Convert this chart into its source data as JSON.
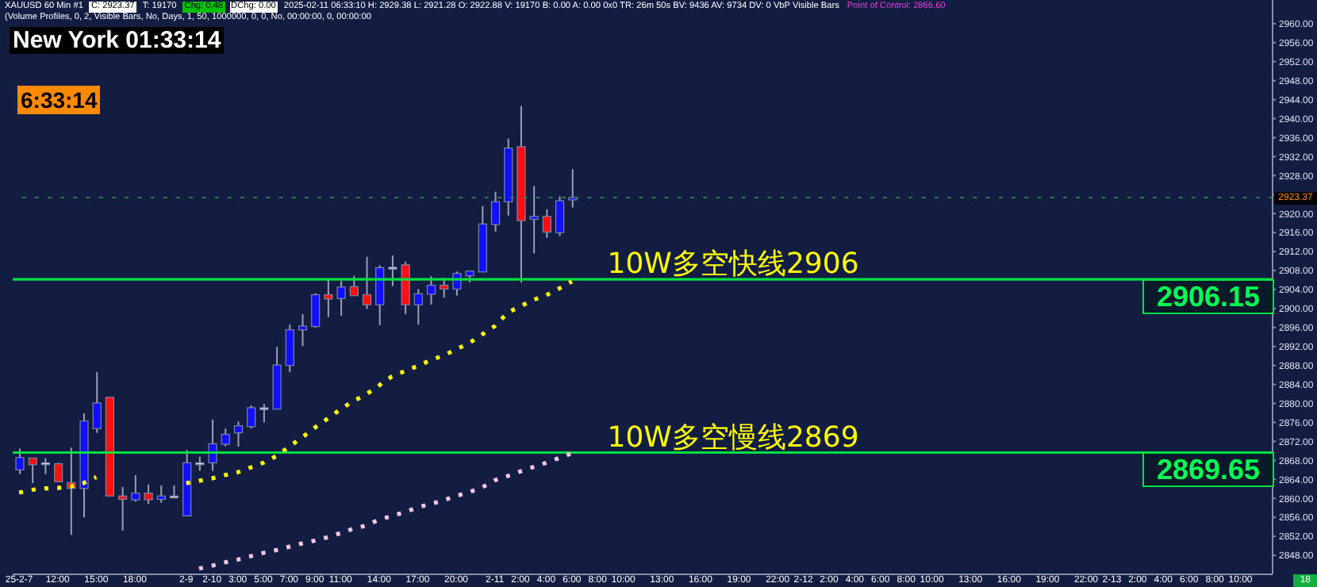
{
  "chart_data": {
    "type": "candlestick",
    "title": "New York 01:33:14",
    "categories": [
      "25-2-7",
      null,
      null,
      "12:00",
      null,
      null,
      "15:00",
      null,
      null,
      "18:00",
      null,
      null,
      null,
      "2-9",
      null,
      "2-10",
      null,
      "3:00",
      null,
      "5:00",
      null,
      "7:00",
      null,
      "9:00",
      null,
      "11:00",
      null,
      null,
      "14:00",
      null,
      null,
      "17:00",
      null,
      null,
      "20:00",
      null,
      null,
      "2-11",
      null,
      "2:00",
      null,
      "4:00",
      null,
      "6:00",
      null,
      "8:00",
      null,
      "10:00",
      null,
      null,
      "13:00",
      null,
      null,
      "16:00",
      null,
      null,
      "19:00",
      null,
      null,
      "22:00",
      null,
      "2-12",
      null,
      "2:00",
      null,
      "4:00",
      null,
      "6:00",
      null,
      "8:00",
      null,
      "10:00",
      null,
      null,
      "13:00",
      null,
      null,
      "16:00",
      null,
      null,
      "19:00",
      null,
      null,
      "22:00",
      null,
      "2-13",
      null,
      "2:00",
      null,
      "4:00",
      null,
      "6:00",
      null,
      "8:00",
      null,
      "10:00",
      null,
      null
    ],
    "ohlc": [
      [
        2866.0,
        2870.5,
        2865.1,
        2868.6
      ],
      [
        2868.5,
        2868.5,
        2863.2,
        2867.1
      ],
      [
        2867.5,
        2868.5,
        2865.1,
        2867.5
      ],
      [
        2867.3,
        2867.5,
        2863.4,
        2863.5
      ],
      [
        2863.3,
        2870.7,
        2852.3,
        2862.1
      ],
      [
        2862.1,
        2877.9,
        2856.0,
        2876.3
      ],
      [
        2874.7,
        2886.6,
        2873.8,
        2880.1
      ],
      [
        2881.3,
        2881.3,
        2860.5,
        2860.5
      ],
      [
        2860.5,
        2862.4,
        2853.2,
        2859.8
      ],
      [
        2859.7,
        2864.9,
        2859.3,
        2861.1
      ],
      [
        2861.1,
        2862.9,
        2858.8,
        2859.7
      ],
      [
        2859.8,
        2862.7,
        2859.1,
        2860.5
      ],
      [
        2860.5,
        2862.7,
        2860.2,
        2860.5
      ],
      [
        2856.3,
        2870.2,
        2856.3,
        2867.5
      ],
      [
        2867.5,
        2868.8,
        2865.8,
        2867.5
      ],
      [
        2867.5,
        2876.6,
        2865.8,
        2871.5
      ],
      [
        2871.4,
        2874.7,
        2871.0,
        2873.5
      ],
      [
        2873.8,
        2876.2,
        2870.9,
        2875.3
      ],
      [
        2875.1,
        2879.6,
        2874.7,
        2879.1
      ],
      [
        2879.1,
        2879.9,
        2876.0,
        2879.1
      ],
      [
        2878.8,
        2891.9,
        2878.8,
        2888.1
      ],
      [
        2888.0,
        2896.6,
        2886.6,
        2895.5
      ],
      [
        2895.5,
        2898.8,
        2892.1,
        2896.3
      ],
      [
        2896.2,
        2903.2,
        2896.0,
        2902.9
      ],
      [
        2902.9,
        2906.0,
        2898.2,
        2902.0
      ],
      [
        2902.1,
        2905.8,
        2898.5,
        2904.5
      ],
      [
        2904.6,
        2906.9,
        2902.7,
        2902.7
      ],
      [
        2902.9,
        2910.9,
        2899.9,
        2900.8
      ],
      [
        2900.8,
        2909.1,
        2896.5,
        2908.6
      ],
      [
        2908.7,
        2911.2,
        2904.7,
        2908.7
      ],
      [
        2909.2,
        2909.9,
        2898.8,
        2900.8
      ],
      [
        2900.8,
        2904.1,
        2896.6,
        2903.1
      ],
      [
        2903.0,
        2906.8,
        2900.8,
        2904.9
      ],
      [
        2904.9,
        2906.5,
        2902.3,
        2904.1
      ],
      [
        2904.1,
        2907.8,
        2902.7,
        2907.4
      ],
      [
        2906.9,
        2907.9,
        2905.5,
        2907.9
      ],
      [
        2907.7,
        2921.6,
        2907.7,
        2917.8
      ],
      [
        2917.7,
        2924.6,
        2916.2,
        2922.5
      ],
      [
        2922.5,
        2935.8,
        2919.6,
        2933.8
      ],
      [
        2934.1,
        2942.7,
        2905.5,
        2918.5
      ],
      [
        2918.8,
        2925.8,
        2911.6,
        2919.4
      ],
      [
        2919.4,
        2920.9,
        2914.9,
        2916.1
      ],
      [
        2916.0,
        2923.6,
        2915.3,
        2922.7
      ],
      [
        2922.88,
        2929.38,
        2921.28,
        2923.37
      ],
      null,
      null,
      null,
      null,
      null,
      null,
      null,
      null,
      null,
      null,
      null,
      null,
      null,
      null,
      null,
      null,
      null,
      null,
      null,
      null,
      null,
      null,
      null,
      null,
      null,
      null,
      null,
      null,
      null,
      null,
      null,
      null,
      null,
      null,
      null,
      null,
      null,
      null,
      null,
      null,
      null,
      null,
      null,
      null,
      null,
      null,
      null,
      null,
      null,
      null,
      null,
      null,
      null,
      null
    ],
    "colors": [
      "#1010ff",
      "#ff1010",
      "#e0e0e0",
      "#ff1010",
      "#ff1010",
      "#1010ff",
      "#1010ff",
      "#ff1010",
      "#ff1010",
      "#1010ff",
      "#ff1010",
      "#1010ff",
      "#e0e0e0",
      "#1010ff",
      "#e0e0e0",
      "#1010ff",
      "#1010ff",
      "#1010ff",
      "#1010ff",
      "#e0e0e0",
      "#1010ff",
      "#1010ff",
      "#1010ff",
      "#1010ff",
      "#ff1010",
      "#1010ff",
      "#ff1010",
      "#ff1010",
      "#1010ff",
      "#e0e0e0",
      "#ff1010",
      "#1010ff",
      "#1010ff",
      "#ff1010",
      "#1010ff",
      "#1010ff",
      "#1010ff",
      "#1010ff",
      "#1010ff",
      "#ff1010",
      "#1010ff",
      "#ff1010",
      "#1010ff",
      "#1010ff",
      null,
      null,
      null,
      null,
      null,
      null,
      null,
      null,
      null,
      null,
      null,
      null,
      null,
      null,
      null,
      null,
      null,
      null,
      null,
      null,
      null,
      null,
      null,
      null,
      null,
      null,
      null,
      null,
      null,
      null,
      null,
      null,
      null,
      null,
      null,
      null,
      null,
      null,
      null,
      null,
      null,
      null,
      null,
      null,
      null,
      null,
      null,
      null,
      null,
      null,
      null,
      null,
      null,
      null
    ],
    "series": [
      {
        "type": "line",
        "color": "#ffff00",
        "line_style": "dotted",
        "values": [
          2861.2,
          2861.8,
          2862.1,
          2862.2,
          2862.5,
          2863.2,
          2864.5,
          null,
          null,
          null,
          null,
          null,
          null,
          2863.2,
          2863.7,
          2864.2,
          2864.9,
          2865.5,
          2866.5,
          2867.5,
          2868.9,
          2870.9,
          2872.8,
          2874.9,
          2876.8,
          2878.8,
          2880.5,
          2881.9,
          2883.8,
          2885.7,
          2886.8,
          2887.9,
          2889.1,
          2890.1,
          2891.4,
          2892.7,
          2894.5,
          2896.3,
          2899.1,
          2900.5,
          2901.8,
          2902.8,
          2904.2,
          2905.7,
          null,
          null,
          null,
          null,
          null,
          null,
          null,
          null,
          null,
          null,
          null,
          null,
          null,
          null,
          null,
          null,
          null,
          null,
          null,
          null,
          null,
          null,
          null,
          null,
          null,
          null,
          null,
          null,
          null,
          null,
          null,
          null,
          null,
          null,
          null,
          null,
          null,
          null,
          null,
          null,
          null,
          null,
          null,
          null,
          null,
          null,
          null,
          null,
          null,
          null,
          null,
          null,
          null,
          null
        ]
      },
      {
        "type": "line",
        "color": "#f4c8e4",
        "line_style": "dotted",
        "values": [
          null,
          null,
          null,
          null,
          null,
          null,
          null,
          null,
          null,
          null,
          null,
          null,
          null,
          null,
          2845.2,
          2845.8,
          2846.5,
          2847.1,
          2847.8,
          2848.5,
          2849.1,
          2849.8,
          2850.5,
          2851.1,
          2851.8,
          2852.7,
          2853.6,
          2854.3,
          2855.5,
          2856.3,
          2857.1,
          2858.1,
          2858.8,
          2859.6,
          2860.5,
          2861.3,
          2862.3,
          2863.8,
          2864.7,
          2865.7,
          2866.6,
          2867.5,
          2868.5,
          2869.5,
          null,
          null,
          null,
          null,
          null,
          null,
          null,
          null,
          null,
          null,
          null,
          null,
          null,
          null,
          null,
          null,
          null,
          null,
          null,
          null,
          null,
          null,
          null,
          null,
          null,
          null,
          null,
          null,
          null,
          null,
          null,
          null,
          null,
          null,
          null,
          null,
          null,
          null,
          null,
          null,
          null,
          null,
          null,
          null,
          null,
          null,
          null,
          null,
          null,
          null,
          null,
          null,
          null,
          null
        ]
      }
    ],
    "ylim": [
      2844,
      2965
    ],
    "yticks": [
      {
        "value": 2848,
        "label": "2848.00"
      },
      {
        "value": 2852,
        "label": "2852.00"
      },
      {
        "value": 2856,
        "label": "2856.00"
      },
      {
        "value": 2860,
        "label": "2860.00"
      },
      {
        "value": 2864,
        "label": "2864.00"
      },
      {
        "value": 2868,
        "label": "2868.00"
      },
      {
        "value": 2872,
        "label": "2872.00"
      },
      {
        "value": 2876,
        "label": "2876.00"
      },
      {
        "value": 2880,
        "label": "2880.00"
      },
      {
        "value": 2884,
        "label": "2884.00"
      },
      {
        "value": 2888,
        "label": "2888.00"
      },
      {
        "value": 2892,
        "label": "2892.00"
      },
      {
        "value": 2896,
        "label": "2896.00"
      },
      {
        "value": 2900,
        "label": "2900.00"
      },
      {
        "value": 2904,
        "label": "2904.00"
      },
      {
        "value": 2908,
        "label": "2908.00"
      },
      {
        "value": 2912,
        "label": "2912.00"
      },
      {
        "value": 2916,
        "label": "2916.00"
      },
      {
        "value": 2920,
        "label": "2920.00"
      },
      {
        "value": 2924,
        "label": null
      },
      {
        "value": 2928,
        "label": "2928.00"
      },
      {
        "value": 2932,
        "label": "2932.00"
      },
      {
        "value": 2936,
        "label": "2936.00"
      },
      {
        "value": 2940,
        "label": "2940.00"
      },
      {
        "value": 2944,
        "label": "2944.00"
      },
      {
        "value": 2948,
        "label": "2948.00"
      },
      {
        "value": 2952,
        "label": "2952.00"
      },
      {
        "value": 2956,
        "label": "2956.00"
      },
      {
        "value": 2960,
        "label": "2960.00"
      }
    ],
    "ref_lines": [
      {
        "axis": "y",
        "value": 2906.15,
        "label": "10W多空快线2906",
        "color": "#00e040",
        "line_style": "solid"
      },
      {
        "axis": "y",
        "value": 2869.65,
        "label": "10W多空慢线2869",
        "color": "#00e040",
        "line_style": "solid"
      },
      {
        "axis": "y",
        "value": 2923.37,
        "label": null,
        "color": "#2a7a45",
        "line_style": "dotted"
      }
    ],
    "annotations": [
      "XAUUSD  60 Min  #1",
      "C: 2923.37",
      "T: 19170",
      "Chg: 0.48",
      "DChg: 0.00",
      "2025-02-11 06:33:10 H: 2929.38 L: 2921.28 O: 2922.88 V: 19170 B: 0.00 A: 0.00 0x0 TR: 26m 50s BV: 9436 AV: 9734 DV: 0 VbP Visible Bars",
      "Point of Control: 2866.60",
      "(Volume Profiles, 0, 2, Visible Bars, No, Days, 1, 50, 1000000, 0, 0, No, 00:00:00, 0, 00:00:00",
      "6:33:14",
      "18",
      {
        "text": "2906.15",
        "y": 2906.15
      },
      {
        "text": "2869.65",
        "y": 2869.65
      },
      "2923.37"
    ]
  }
}
